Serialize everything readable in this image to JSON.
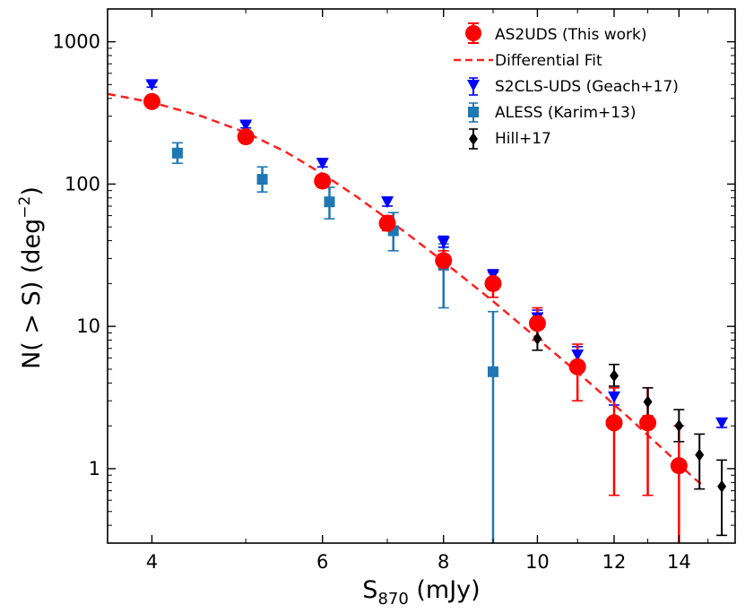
{
  "chart_data": {
    "type": "scatter",
    "title": "",
    "xlabel": "S",
    "xlabel_sub": "870",
    "xlabel_unit": " (mJy)",
    "ylabel": "N( > S) (deg",
    "ylabel_sup": "−2",
    "ylabel_close": ")",
    "xscale": "log",
    "yscale": "log",
    "xlim": [
      3.6,
      16.0
    ],
    "ylim": [
      0.3,
      1700
    ],
    "xticks": [
      4,
      6,
      8,
      10,
      12,
      14
    ],
    "xtick_labels": [
      "4",
      "6",
      "8",
      "10",
      "12",
      "14"
    ],
    "yticks": [
      1,
      10,
      100,
      1000
    ],
    "ytick_labels": [
      "1",
      "10",
      "100",
      "1000"
    ],
    "legend_position": "top-right",
    "series": [
      {
        "name": "AS2UDS (This work)",
        "marker": "circle",
        "color": "#ff0000",
        "points": [
          {
            "x": 4.0,
            "y": 380,
            "lo": 350,
            "hi": 415
          },
          {
            "x": 5.0,
            "y": 215,
            "lo": 198,
            "hi": 233
          },
          {
            "x": 6.0,
            "y": 105,
            "lo": 95,
            "hi": 116
          },
          {
            "x": 7.0,
            "y": 53,
            "lo": 47,
            "hi": 60
          },
          {
            "x": 8.0,
            "y": 29,
            "lo": 25,
            "hi": 34
          },
          {
            "x": 9.0,
            "y": 20,
            "lo": 16,
            "hi": 24
          },
          {
            "x": 10.0,
            "y": 10.5,
            "lo": 8,
            "hi": 13.5
          },
          {
            "x": 11.0,
            "y": 5.2,
            "lo": 3.0,
            "hi": 7.5
          },
          {
            "x": 12.0,
            "y": 2.1,
            "lo": 0.65,
            "hi": 3.7
          },
          {
            "x": 13.0,
            "y": 2.1,
            "lo": 0.65,
            "hi": 3.7
          },
          {
            "x": 14.0,
            "y": 1.05,
            "lo": 0.3,
            "hi": 2.0
          }
        ]
      },
      {
        "name": "Differential Fit",
        "marker": "dashed-line",
        "color": "#ff2020",
        "x": [
          3.6,
          4.0,
          4.5,
          5.0,
          5.5,
          6.0,
          6.5,
          7.0,
          7.5,
          8.0,
          8.5,
          9.0,
          9.5,
          10.0,
          10.5,
          11.0,
          11.5,
          12.0,
          12.5,
          13.0,
          13.5,
          14.0,
          14.5,
          14.8
        ],
        "y": [
          430,
          375,
          300,
          230,
          168,
          118,
          82,
          57,
          40,
          28.5,
          20.5,
          15,
          11,
          8.2,
          6.2,
          4.75,
          3.65,
          2.82,
          2.2,
          1.72,
          1.36,
          1.08,
          0.86,
          0.77
        ]
      },
      {
        "name": "S2CLS-UDS (Geach+17)",
        "marker": "triangle-down",
        "color": "#0000ff",
        "points": [
          {
            "x": 4.0,
            "y": 500,
            "lo": 480,
            "hi": 525
          },
          {
            "x": 5.0,
            "y": 260,
            "lo": 248,
            "hi": 272
          },
          {
            "x": 6.0,
            "y": 140,
            "lo": 132,
            "hi": 150
          },
          {
            "x": 7.0,
            "y": 75,
            "lo": 70,
            "hi": 81
          },
          {
            "x": 8.0,
            "y": 39,
            "lo": 36,
            "hi": 43
          },
          {
            "x": 9.0,
            "y": 23,
            "lo": 21,
            "hi": 25
          },
          {
            "x": 10.0,
            "y": 11.5,
            "lo": 10,
            "hi": 13
          },
          {
            "x": 11.0,
            "y": 6.3,
            "lo": 5.5,
            "hi": 7.2
          },
          {
            "x": 12.0,
            "y": 3.2,
            "lo": 2.8,
            "hi": 3.7
          },
          {
            "x": 15.5,
            "y": 2.1,
            "lo": 1.95,
            "hi": 2.25
          }
        ]
      },
      {
        "name": "ALESS (Karim+13)",
        "marker": "square",
        "color": "#1f77b4",
        "points": [
          {
            "x": 4.25,
            "y": 165,
            "lo": 140,
            "hi": 195
          },
          {
            "x": 5.2,
            "y": 108,
            "lo": 88,
            "hi": 132
          },
          {
            "x": 6.1,
            "y": 75,
            "lo": 57,
            "hi": 95
          },
          {
            "x": 7.1,
            "y": 47,
            "lo": 34,
            "hi": 63
          },
          {
            "x": 8.0,
            "y": 27,
            "lo": 13.5,
            "hi": 38
          },
          {
            "x": 9.0,
            "y": 4.8,
            "lo": 0.3,
            "hi": 12.7
          }
        ]
      },
      {
        "name": "Hill+17",
        "marker": "diamond",
        "color": "#000000",
        "points": [
          {
            "x": 10.0,
            "y": 8.2,
            "lo": 6.8,
            "hi": 9.8
          },
          {
            "x": 12.0,
            "y": 4.5,
            "lo": 3.8,
            "hi": 5.4
          },
          {
            "x": 13.0,
            "y": 2.95,
            "lo": 2.35,
            "hi": 3.7
          },
          {
            "x": 14.0,
            "y": 2.0,
            "lo": 1.55,
            "hi": 2.6
          },
          {
            "x": 14.7,
            "y": 1.25,
            "lo": 0.72,
            "hi": 1.75
          },
          {
            "x": 15.5,
            "y": 0.75,
            "lo": 0.34,
            "hi": 1.15
          }
        ]
      }
    ]
  }
}
